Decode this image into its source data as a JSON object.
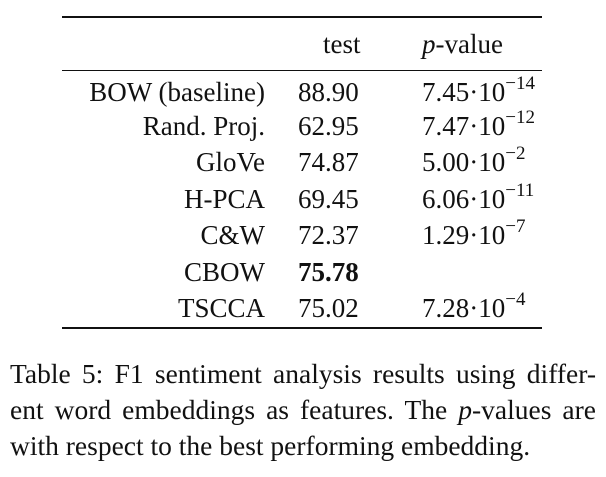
{
  "table": {
    "header": {
      "test": "test",
      "p_var": "p",
      "p_suffix": "-value"
    },
    "rows": [
      {
        "name": "BOW (baseline)",
        "test": "88.90",
        "p_mantissa": "7.45",
        "p_exp": "−14"
      },
      {
        "name": "Rand. Proj.",
        "test": "62.95",
        "p_mantissa": "7.47",
        "p_exp": "−12"
      },
      {
        "name": "GloVe",
        "test": "74.87",
        "p_mantissa": "5.00",
        "p_exp": "−2"
      },
      {
        "name": "H-PCA",
        "test": "69.45",
        "p_mantissa": "6.06",
        "p_exp": "−11"
      },
      {
        "name": "C&W",
        "test": "72.37",
        "p_mantissa": "1.29",
        "p_exp": "−7"
      },
      {
        "name": "CBOW",
        "test": "75.78",
        "p_mantissa": "",
        "p_exp": ""
      },
      {
        "name": "TSCCA",
        "test": "75.02",
        "p_mantissa": "7.28",
        "p_exp": "−4"
      }
    ],
    "p_base": "·10"
  },
  "caption": {
    "part1": "Table 5: F1 sentiment analysis results using differ-ent word embeddings as features. The ",
    "p_var": "p",
    "part2": "-values are with respect to the best performing embedding."
  }
}
